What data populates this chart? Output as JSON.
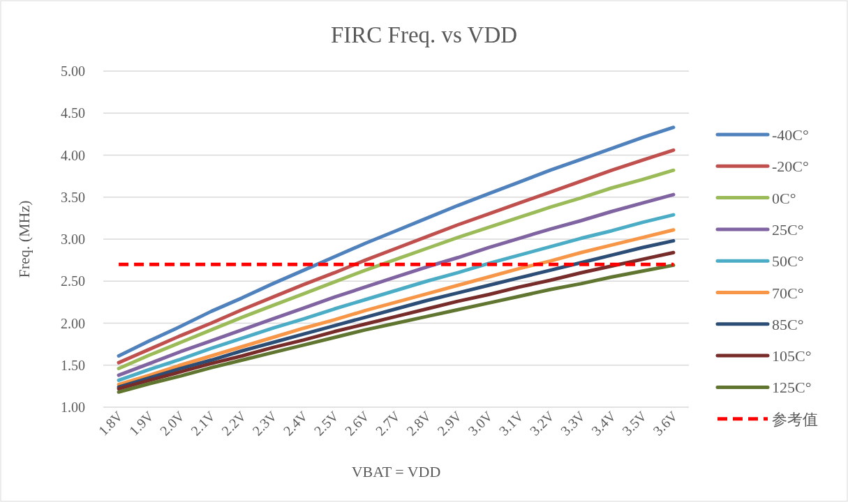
{
  "chart_data": {
    "type": "line",
    "title": "FIRC Freq. vs VDD",
    "xlabel": "VBAT = VDD",
    "ylabel": "Freq. (MHz)",
    "categories": [
      "1.8V",
      "1.9V",
      "2.0V",
      "2.1V",
      "2.2V",
      "2.3V",
      "2.4V",
      "2.5V",
      "2.6V",
      "2.7V",
      "2.8V",
      "2.9V",
      "3.0V",
      "3.1V",
      "3.2V",
      "3.3V",
      "3.4V",
      "3.5V",
      "3.6V"
    ],
    "ylim": [
      1,
      5
    ],
    "yticks": [
      {
        "value": 1,
        "label": "1.00"
      },
      {
        "value": 1.5,
        "label": "1.50"
      },
      {
        "value": 2,
        "label": "2.00"
      },
      {
        "value": 2.5,
        "label": "2.50"
      },
      {
        "value": 3,
        "label": "3.00"
      },
      {
        "value": 3.5,
        "label": "3.50"
      },
      {
        "value": 4,
        "label": "4.00"
      },
      {
        "value": 4.5,
        "label": "4.50"
      },
      {
        "value": 5,
        "label": "5.00"
      }
    ],
    "grid": "y",
    "legend": "right",
    "marker": "none",
    "series": [
      {
        "name": "-40C°",
        "color": "#4f81bd",
        "values": [
          1.61,
          1.79,
          1.96,
          2.14,
          2.3,
          2.47,
          2.63,
          2.79,
          2.95,
          3.1,
          3.25,
          3.4,
          3.54,
          3.68,
          3.82,
          3.95,
          4.08,
          4.21,
          4.33
        ]
      },
      {
        "name": "-20C°",
        "color": "#c0504d",
        "values": [
          1.53,
          1.69,
          1.85,
          2.0,
          2.16,
          2.31,
          2.46,
          2.6,
          2.75,
          2.89,
          3.03,
          3.17,
          3.3,
          3.43,
          3.56,
          3.69,
          3.82,
          3.94,
          4.06
        ]
      },
      {
        "name": "0C°",
        "color": "#9bbb59",
        "values": [
          1.46,
          1.62,
          1.77,
          1.92,
          2.07,
          2.21,
          2.35,
          2.49,
          2.63,
          2.76,
          2.89,
          3.02,
          3.14,
          3.26,
          3.38,
          3.49,
          3.61,
          3.71,
          3.82
        ]
      },
      {
        "name": "25C°",
        "color": "#8064a2",
        "values": [
          1.38,
          1.52,
          1.66,
          1.79,
          1.92,
          2.05,
          2.18,
          2.31,
          2.43,
          2.55,
          2.67,
          2.78,
          2.9,
          3.01,
          3.12,
          3.22,
          3.33,
          3.43,
          3.53
        ]
      },
      {
        "name": "50C°",
        "color": "#4bacc6",
        "values": [
          1.32,
          1.45,
          1.57,
          1.7,
          1.82,
          1.94,
          2.05,
          2.17,
          2.28,
          2.39,
          2.5,
          2.6,
          2.71,
          2.81,
          2.91,
          3.01,
          3.1,
          3.2,
          3.29
        ]
      },
      {
        "name": "70C°",
        "color": "#f79646",
        "values": [
          1.27,
          1.38,
          1.5,
          1.61,
          1.72,
          1.83,
          1.94,
          2.04,
          2.15,
          2.25,
          2.35,
          2.45,
          2.55,
          2.65,
          2.74,
          2.84,
          2.93,
          3.02,
          3.11
        ]
      },
      {
        "name": "85C°",
        "color": "#2c4d75",
        "values": [
          1.24,
          1.35,
          1.46,
          1.56,
          1.67,
          1.77,
          1.87,
          1.97,
          2.07,
          2.17,
          2.27,
          2.36,
          2.45,
          2.54,
          2.63,
          2.72,
          2.81,
          2.9,
          2.98
        ]
      },
      {
        "name": "105C°",
        "color": "#772c2a",
        "values": [
          1.22,
          1.32,
          1.42,
          1.52,
          1.61,
          1.71,
          1.8,
          1.9,
          1.99,
          2.08,
          2.17,
          2.26,
          2.34,
          2.43,
          2.51,
          2.6,
          2.68,
          2.76,
          2.84
        ]
      },
      {
        "name": "125C°",
        "color": "#5f7530",
        "values": [
          1.18,
          1.28,
          1.37,
          1.47,
          1.56,
          1.65,
          1.74,
          1.83,
          1.92,
          2.0,
          2.08,
          2.16,
          2.24,
          2.32,
          2.4,
          2.47,
          2.55,
          2.62,
          2.69
        ]
      },
      {
        "name": "参考值",
        "color": "#ff0000",
        "line_style": "dashed",
        "values": [
          2.7,
          2.7,
          2.7,
          2.7,
          2.7,
          2.7,
          2.7,
          2.7,
          2.7,
          2.7,
          2.7,
          2.7,
          2.7,
          2.7,
          2.7,
          2.7,
          2.7,
          2.7,
          2.7
        ]
      }
    ]
  }
}
